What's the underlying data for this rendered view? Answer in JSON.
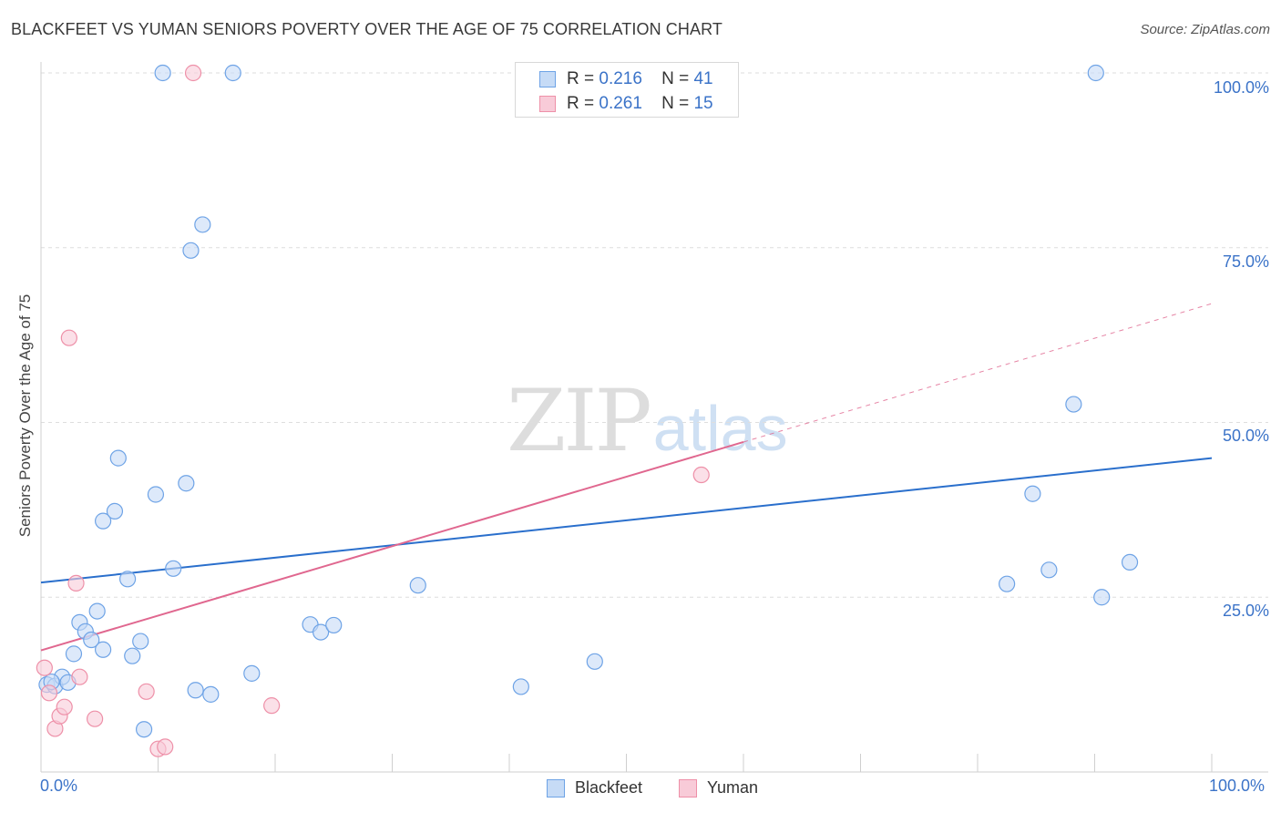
{
  "chart_data": {
    "type": "scatter",
    "title": "BLACKFEET VS YUMAN SENIORS POVERTY OVER THE AGE OF 75 CORRELATION CHART",
    "source": "Source: ZipAtlas.com",
    "xlabel": "",
    "ylabel": "Seniors Poverty Over the Age of 75",
    "xlim": [
      0,
      100
    ],
    "ylim": [
      0,
      100
    ],
    "x_tick_labels": [
      "0.0%",
      "100.0%"
    ],
    "y_tick_labels": [
      "100.0%",
      "75.0%",
      "50.0%",
      "25.0%"
    ],
    "grid": true,
    "legend_position": "top-center",
    "series": [
      {
        "name": "Blackfeet",
        "color": "#6ea3e6",
        "fill": "#c6dbf6",
        "r": "0.216",
        "n": "41",
        "trend": {
          "x": [
            0,
            100
          ],
          "y": [
            27.1,
            44.9
          ],
          "line_color": "#2a6fcc"
        },
        "points": [
          [
            0.5,
            12.5
          ],
          [
            1.2,
            12.3
          ],
          [
            1.8,
            13.6
          ],
          [
            2.3,
            12.8
          ],
          [
            2.8,
            16.9
          ],
          [
            3.3,
            21.4
          ],
          [
            3.8,
            20.1
          ],
          [
            4.3,
            18.9
          ],
          [
            4.8,
            23.0
          ],
          [
            5.3,
            17.5
          ],
          [
            5.3,
            35.9
          ],
          [
            6.3,
            37.3
          ],
          [
            6.6,
            44.9
          ],
          [
            7.4,
            27.6
          ],
          [
            7.8,
            16.6
          ],
          [
            8.5,
            18.7
          ],
          [
            8.8,
            6.1
          ],
          [
            9.8,
            39.7
          ],
          [
            10.4,
            100.0
          ],
          [
            11.3,
            29.1
          ],
          [
            12.4,
            41.3
          ],
          [
            12.8,
            74.6
          ],
          [
            13.2,
            11.7
          ],
          [
            13.8,
            78.3
          ],
          [
            14.5,
            11.1
          ],
          [
            16.4,
            100.0
          ],
          [
            18.0,
            14.1
          ],
          [
            23.0,
            21.1
          ],
          [
            23.9,
            20.0
          ],
          [
            25.0,
            21.0
          ],
          [
            32.2,
            26.7
          ],
          [
            41.0,
            12.2
          ],
          [
            47.3,
            15.8
          ],
          [
            82.5,
            26.9
          ],
          [
            84.7,
            39.8
          ],
          [
            86.1,
            28.9
          ],
          [
            88.2,
            52.6
          ],
          [
            90.1,
            100.0
          ],
          [
            90.6,
            25.0
          ],
          [
            93.0,
            30.0
          ],
          [
            0.9,
            12.9
          ]
        ]
      },
      {
        "name": "Yuman",
        "color": "#ee90a8",
        "fill": "#f8cbd8",
        "r": "0.261",
        "n": "15",
        "trend": {
          "x": [
            0,
            60
          ],
          "y": [
            17.4,
            47.2
          ],
          "dash_to": [
            100,
            67.0
          ],
          "line_color": "#e0678f"
        },
        "points": [
          [
            0.3,
            14.9
          ],
          [
            0.7,
            11.3
          ],
          [
            1.2,
            6.2
          ],
          [
            1.6,
            8.0
          ],
          [
            2.0,
            9.3
          ],
          [
            2.4,
            62.1
          ],
          [
            3.0,
            27.0
          ],
          [
            3.3,
            13.6
          ],
          [
            4.6,
            7.6
          ],
          [
            9.0,
            11.5
          ],
          [
            10.0,
            3.3
          ],
          [
            10.6,
            3.6
          ],
          [
            13.0,
            100.0
          ],
          [
            19.7,
            9.5
          ],
          [
            56.4,
            42.5
          ]
        ]
      }
    ],
    "watermark": {
      "part1": "ZIP",
      "part2": "atlas"
    },
    "legend": {
      "r_label": "R =",
      "n_label": "N ="
    }
  }
}
